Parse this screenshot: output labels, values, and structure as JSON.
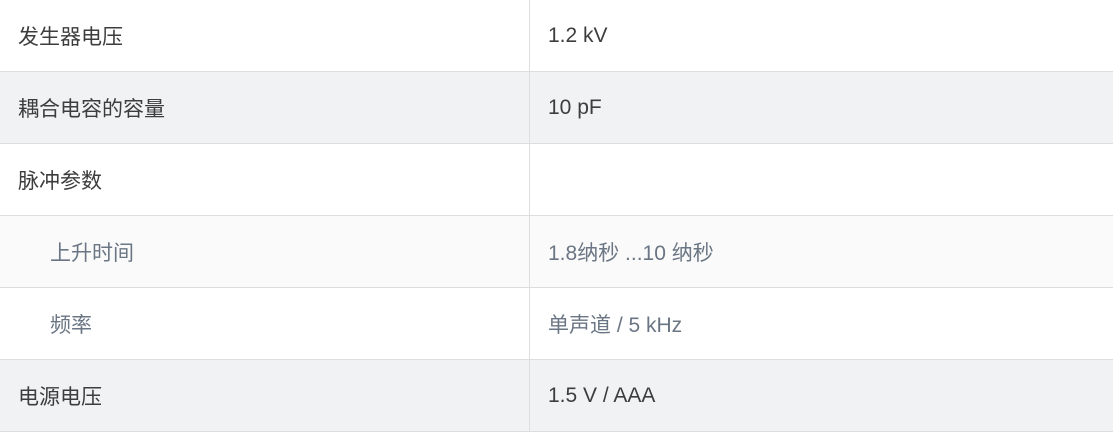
{
  "rows": [
    {
      "label": "发生器电压",
      "value": "1.2 kV"
    },
    {
      "label": "耦合电容的容量",
      "value": "10 pF"
    },
    {
      "label": "脉冲参数",
      "value": ""
    },
    {
      "label": "上升时间",
      "value": "1.8纳秒 ...10 纳秒"
    },
    {
      "label": "频率",
      "value": "单声道 / 5 kHz"
    },
    {
      "label": "电源电压",
      "value": "1.5 V / AAA"
    }
  ]
}
